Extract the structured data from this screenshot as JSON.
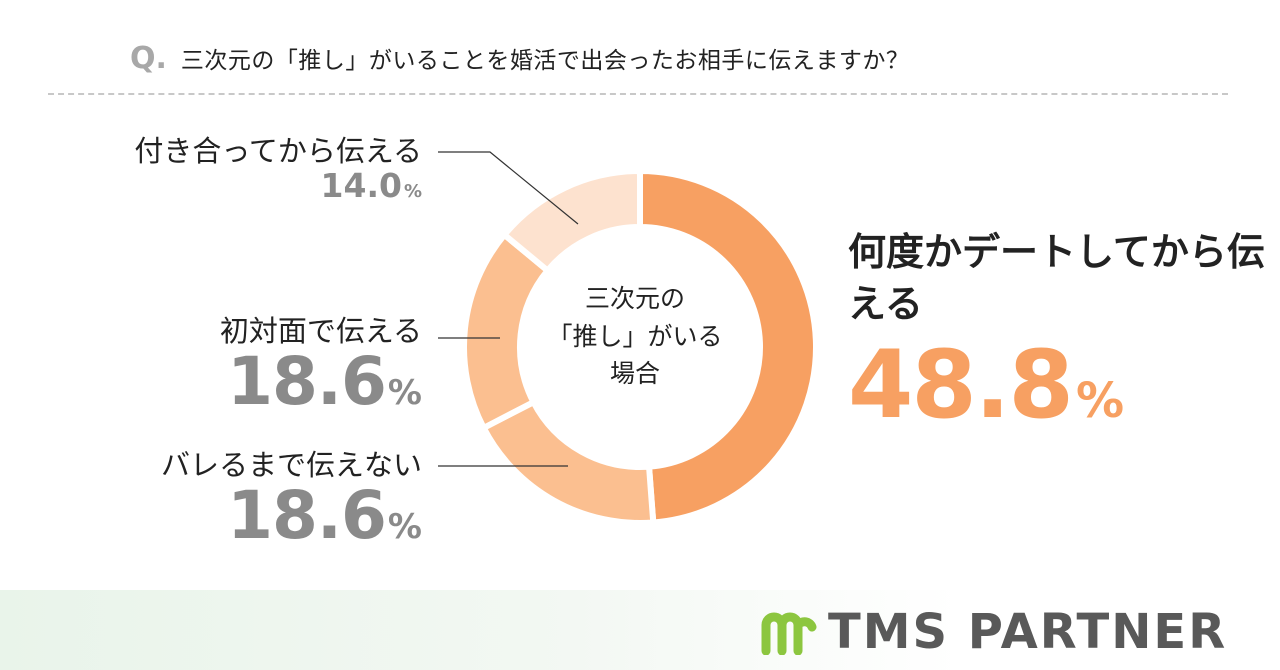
{
  "header": {
    "q_mark": "Q.",
    "question": "三次元の「推し」がいることを婚活で出会ったお相手に伝えますか？"
  },
  "center": {
    "lines": [
      "三次元の",
      "「推し」がいる",
      "場合"
    ]
  },
  "colors": {
    "accent": "#f7a062",
    "slice_dark": "#f7a062",
    "slice_medium": "#fbbf90",
    "slice_light": "#fde2cf",
    "gray": "#8a8a8a"
  },
  "chart_data": {
    "type": "pie",
    "donut": true,
    "categories": [
      "何度かデートしてから伝える",
      "バレるまで伝えない",
      "初対面で伝える",
      "付き合ってから伝える"
    ],
    "values": [
      48.8,
      18.6,
      18.6,
      14.0
    ],
    "unit": "%"
  },
  "labels": {
    "after_dates": {
      "name": "何度かデートしてから伝える",
      "value": "48.8",
      "unit": "%"
    },
    "until_found": {
      "name": "バレるまで伝えない",
      "value": "18.6",
      "unit": "%"
    },
    "first_meeting": {
      "name": "初対面で伝える",
      "value": "18.6",
      "unit": "%"
    },
    "after_dating": {
      "name": "付き合ってから伝える",
      "value": "14.0",
      "unit": "%"
    }
  },
  "brand": {
    "name": "TMS PARTNER",
    "icon": "m-logo-icon"
  }
}
